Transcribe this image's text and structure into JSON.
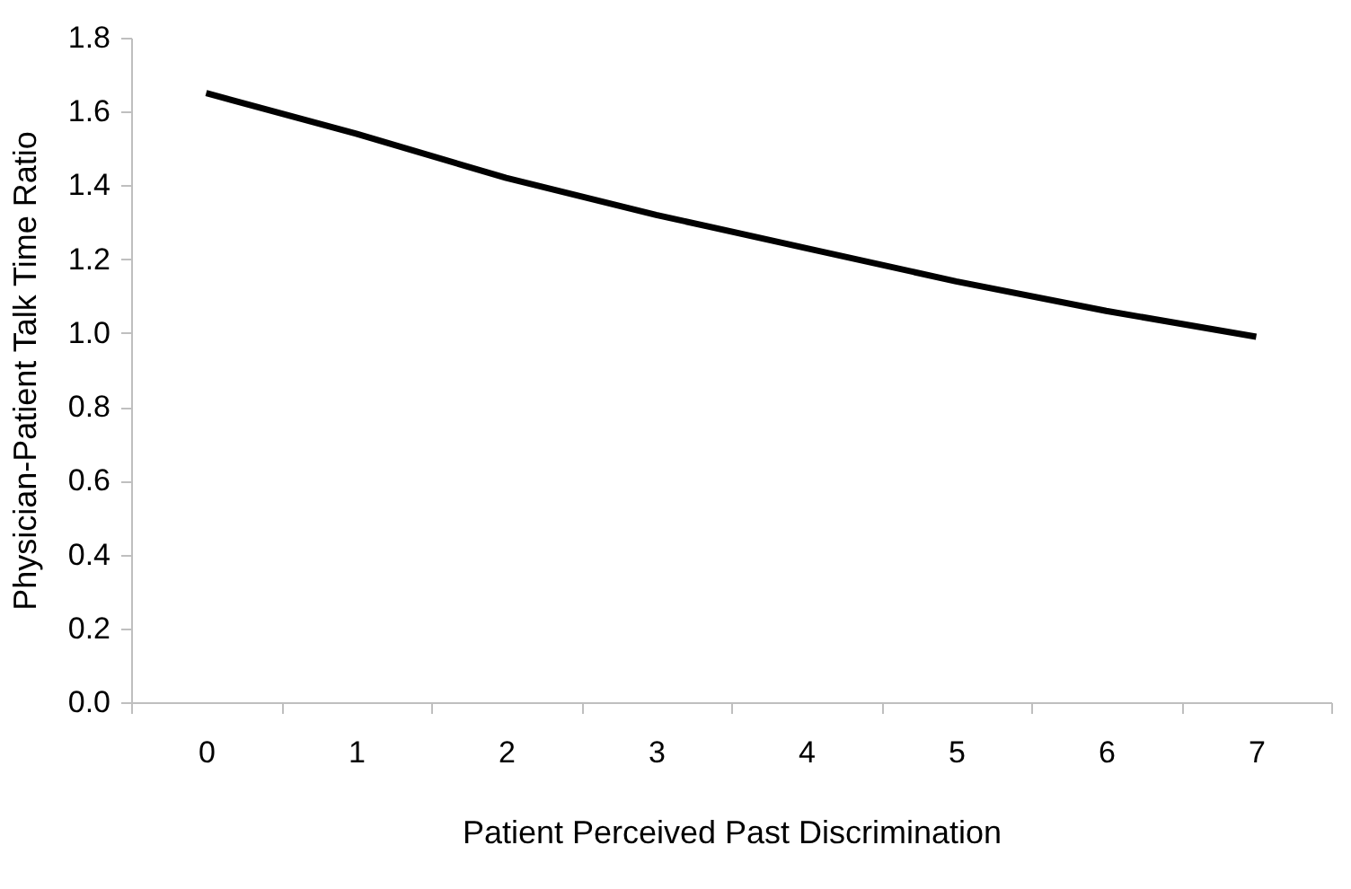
{
  "chart_data": {
    "type": "line",
    "xlabel": "Patient Perceived Past Discrimination",
    "ylabel": "Physician-Patient Talk Time Ratio",
    "categories": [
      "0",
      "1",
      "2",
      "3",
      "4",
      "5",
      "6",
      "7"
    ],
    "series": [
      {
        "color": "#000000",
        "values": [
          1.65,
          1.54,
          1.42,
          1.32,
          1.23,
          1.14,
          1.06,
          0.99
        ]
      }
    ],
    "ylim": [
      0.0,
      1.8
    ],
    "yticks": [
      {
        "value": 0,
        "label": "0.0"
      },
      {
        "value": 0.2,
        "label": "0.2"
      },
      {
        "value": 0.4,
        "label": "0.4"
      },
      {
        "value": 0.6,
        "label": "0.6"
      },
      {
        "value": 0.8,
        "label": "0.8"
      },
      {
        "value": 1.0,
        "label": "1.0"
      },
      {
        "value": 1.2,
        "label": "1.2"
      },
      {
        "value": 1.4,
        "label": "1.4"
      },
      {
        "value": 1.6,
        "label": "1.6"
      },
      {
        "value": 1.8,
        "label": "1.8"
      }
    ],
    "grid": false,
    "marker": "none",
    "line_style": "solid",
    "legend": false
  }
}
